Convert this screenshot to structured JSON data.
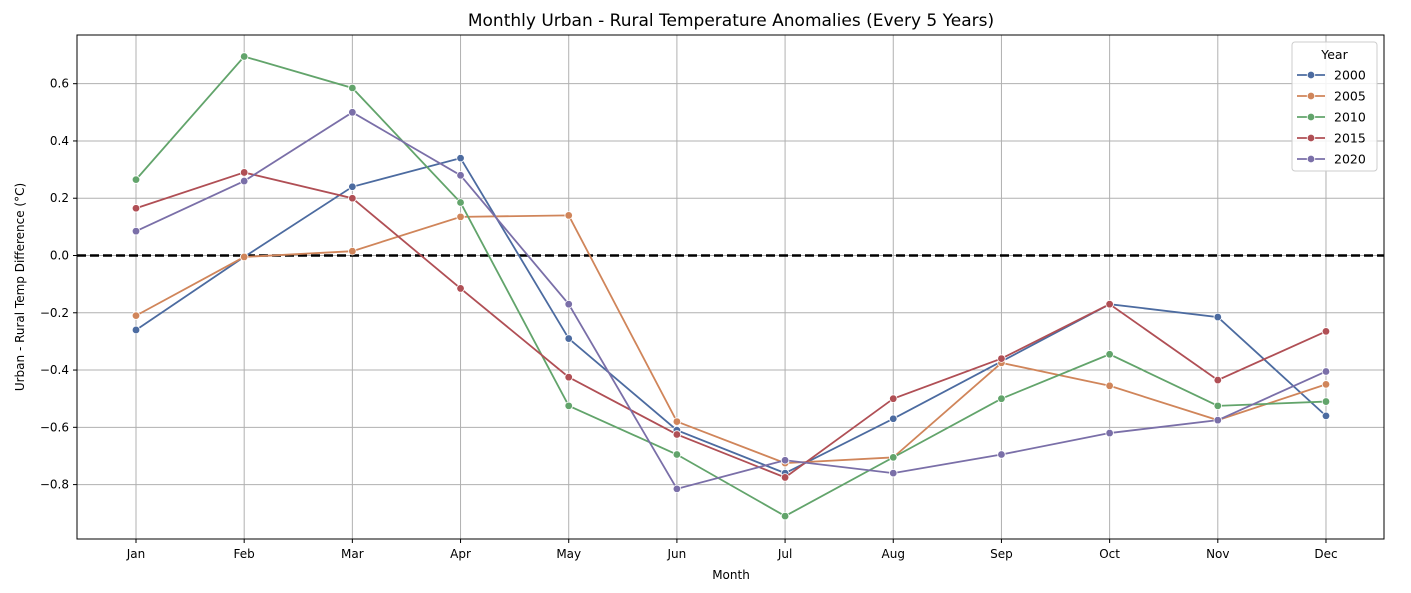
{
  "chart_data": {
    "type": "line",
    "title": "Monthly Urban - Rural Temperature Anomalies (Every 5 Years)",
    "xlabel": "Month",
    "ylabel": "Urban - Rural Temp Difference (°C)",
    "categories": [
      "Jan",
      "Feb",
      "Mar",
      "Apr",
      "May",
      "Jun",
      "Jul",
      "Aug",
      "Sep",
      "Oct",
      "Nov",
      "Dec"
    ],
    "ylim": [
      -0.99,
      0.77
    ],
    "yticks": [
      0.6,
      0.4,
      0.2,
      0.0,
      -0.2,
      -0.4,
      -0.6,
      -0.8
    ],
    "ytick_labels": [
      "0.6",
      "0.4",
      "0.2",
      "0.0",
      "−0.2",
      "−0.4",
      "−0.6",
      "−0.8"
    ],
    "grid": true,
    "reference_line": {
      "y": 0.0,
      "style": "dashed",
      "color": "#000000"
    },
    "legend": {
      "title": "Year",
      "placement": "top-right"
    },
    "series": [
      {
        "name": "2000",
        "color": "#4c6ba0",
        "values": [
          -0.26,
          -0.005,
          0.24,
          0.34,
          -0.29,
          -0.61,
          -0.76,
          -0.57,
          -0.37,
          -0.17,
          -0.215,
          -0.56
        ]
      },
      {
        "name": "2005",
        "color": "#d0855a",
        "values": [
          -0.21,
          -0.005,
          0.015,
          0.135,
          0.14,
          -0.58,
          -0.725,
          -0.705,
          -0.375,
          -0.455,
          -0.575,
          -0.45
        ]
      },
      {
        "name": "2010",
        "color": "#62a46b",
        "values": [
          0.265,
          0.695,
          0.585,
          0.185,
          -0.525,
          -0.695,
          -0.91,
          -0.705,
          -0.5,
          -0.345,
          -0.525,
          -0.51
        ]
      },
      {
        "name": "2015",
        "color": "#b04f55",
        "values": [
          0.165,
          0.29,
          0.2,
          -0.115,
          -0.425,
          -0.625,
          -0.775,
          -0.5,
          -0.36,
          -0.17,
          -0.435,
          -0.265
        ]
      },
      {
        "name": "2020",
        "color": "#7a6fa8",
        "values": [
          0.085,
          0.26,
          0.5,
          0.28,
          -0.17,
          -0.815,
          -0.715,
          -0.76,
          -0.695,
          -0.62,
          -0.575,
          -0.405
        ]
      }
    ]
  }
}
